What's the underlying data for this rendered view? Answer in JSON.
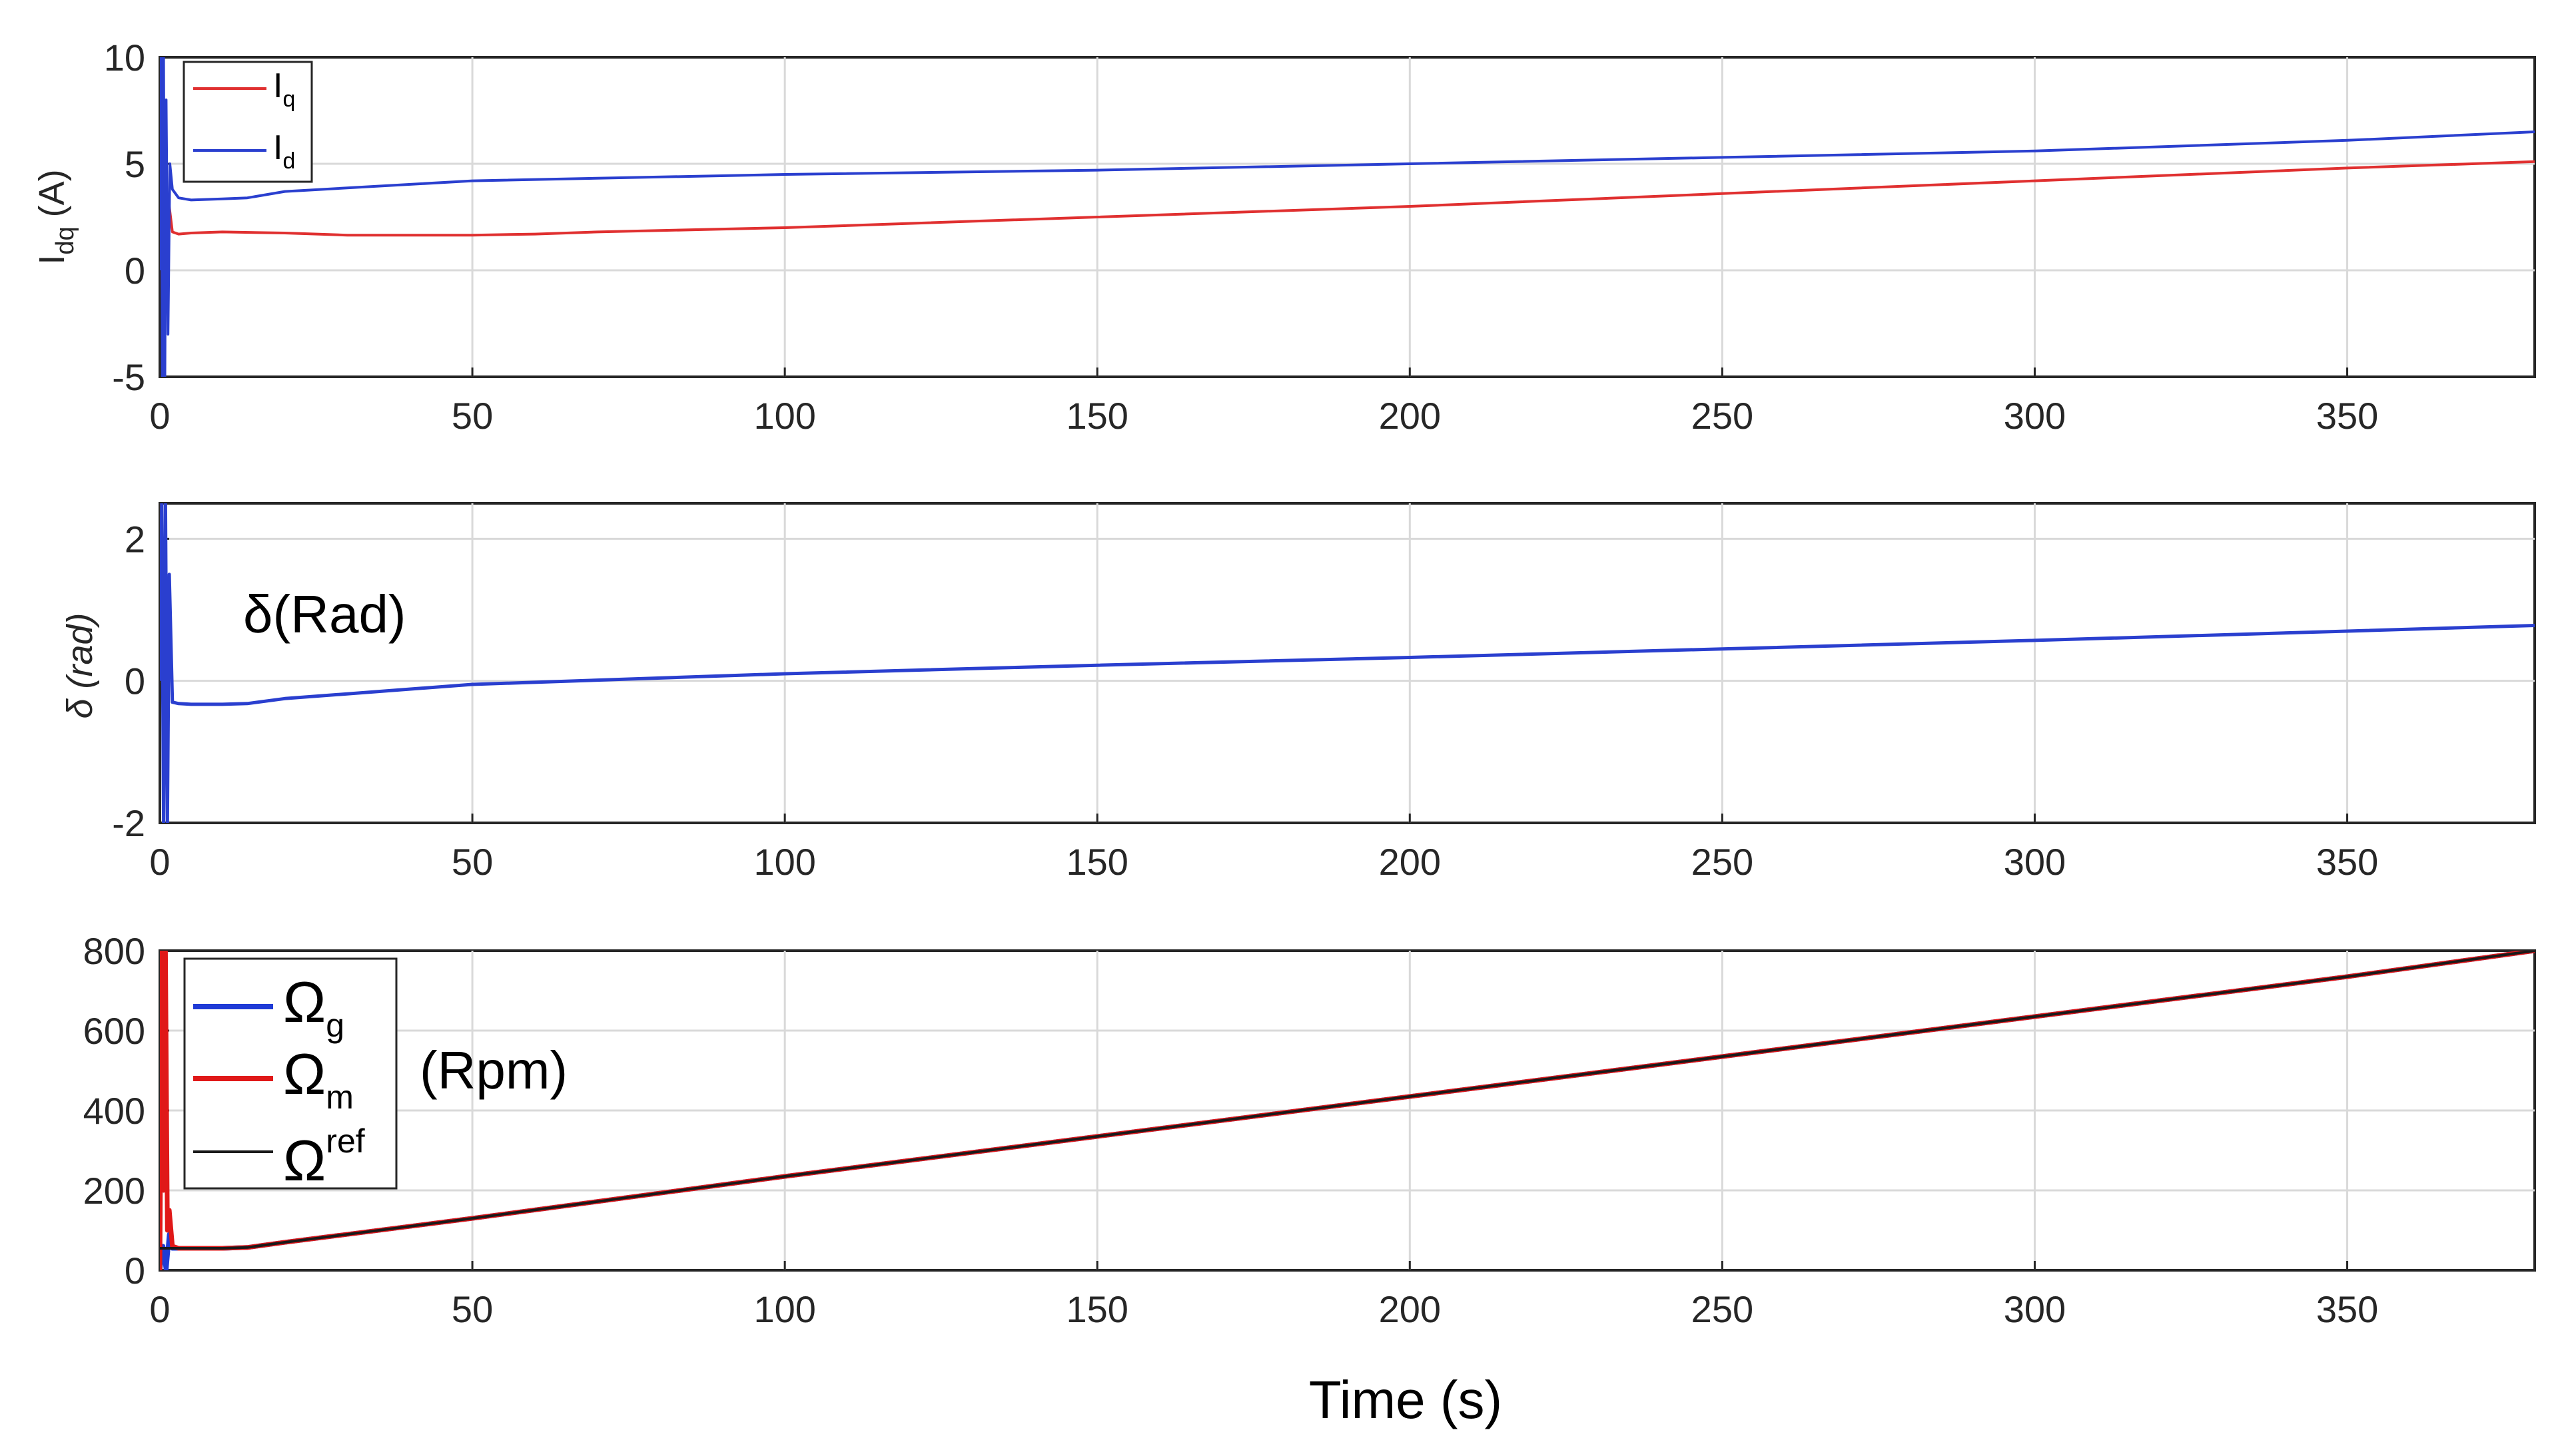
{
  "chart_data": [
    {
      "type": "line",
      "ylabel": "I",
      "ylabel_sub": "dq",
      "ylabel_unit": "(A)",
      "xlim": [
        0,
        380
      ],
      "ylim": [
        -5,
        10
      ],
      "xticks": [
        0,
        50,
        100,
        150,
        200,
        250,
        300,
        350
      ],
      "yticks": [
        -5,
        0,
        5,
        10
      ],
      "grid": true,
      "legend_position": "top-left",
      "series": [
        {
          "name": "I",
          "sub": "q",
          "color": "#e03030",
          "x": [
            0,
            0.2,
            0.4,
            0.6,
            0.8,
            1.0,
            1.2,
            1.5,
            2.0,
            3,
            5,
            10,
            20,
            30,
            50,
            60,
            70,
            100,
            150,
            200,
            250,
            300,
            350,
            380
          ],
          "y": [
            0,
            6,
            -3,
            5,
            -2,
            4,
            1,
            3,
            1.8,
            1.7,
            1.75,
            1.8,
            1.75,
            1.65,
            1.65,
            1.7,
            1.8,
            2.0,
            2.5,
            3.0,
            3.6,
            4.2,
            4.8,
            5.1
          ]
        },
        {
          "name": "I",
          "sub": "d",
          "color": "#2a3fcf",
          "x": [
            0,
            0.2,
            0.4,
            0.6,
            0.8,
            1.0,
            1.3,
            1.6,
            2.0,
            3,
            5,
            10,
            14,
            20,
            50,
            100,
            150,
            200,
            250,
            300,
            350,
            380
          ],
          "y": [
            0,
            10,
            -5,
            10,
            -5,
            8,
            -3,
            5,
            3.8,
            3.4,
            3.3,
            3.35,
            3.4,
            3.7,
            4.2,
            4.5,
            4.7,
            5.0,
            5.3,
            5.6,
            6.1,
            6.5
          ]
        }
      ]
    },
    {
      "type": "line",
      "ylabel": "δ (rad)",
      "annotation": "δ(Rad)",
      "xlim": [
        0,
        380
      ],
      "ylim": [
        -2,
        2.5
      ],
      "xticks": [
        0,
        50,
        100,
        150,
        200,
        250,
        300,
        350
      ],
      "yticks": [
        -2,
        0,
        2
      ],
      "grid": true,
      "series": [
        {
          "name": "δ",
          "color": "#2a3fcf",
          "x": [
            0,
            0.3,
            0.6,
            0.9,
            1.2,
            1.5,
            2.0,
            3,
            5,
            10,
            14,
            20,
            50,
            100,
            150,
            200,
            250,
            300,
            350,
            380
          ],
          "y": [
            0,
            2.5,
            -2,
            2.5,
            -2,
            1.5,
            -0.3,
            -0.32,
            -0.33,
            -0.33,
            -0.32,
            -0.25,
            -0.05,
            0.1,
            0.22,
            0.33,
            0.45,
            0.57,
            0.7,
            0.78
          ]
        }
      ]
    },
    {
      "type": "line",
      "annotation": "(Rpm)",
      "xlabel": "Time (s)",
      "xlim": [
        0,
        380
      ],
      "ylim": [
        0,
        800
      ],
      "xticks": [
        0,
        50,
        100,
        150,
        200,
        250,
        300,
        350
      ],
      "yticks": [
        0,
        200,
        400,
        600,
        800
      ],
      "grid": true,
      "legend_position": "top-left",
      "series": [
        {
          "name": "Ω",
          "sub": "g",
          "color": "#1f3bd6",
          "x": [
            0,
            0.5,
            1.0,
            1.5,
            2.0,
            3,
            5,
            10,
            14,
            20,
            50,
            100,
            150,
            200,
            250,
            300,
            350,
            380
          ],
          "y": [
            0,
            60,
            0,
            90,
            55,
            55,
            55,
            55,
            57,
            70,
            130,
            235,
            335,
            435,
            535,
            635,
            735,
            800
          ]
        },
        {
          "name": "Ω",
          "sub": "m",
          "color": "#e01818",
          "x": [
            0,
            0.3,
            0.6,
            0.9,
            1.2,
            1.5,
            2.0,
            3,
            5,
            10,
            14,
            20,
            50,
            100,
            150,
            200,
            250,
            300,
            350,
            380
          ],
          "y": [
            0,
            800,
            200,
            800,
            100,
            150,
            60,
            55,
            55,
            55,
            57,
            70,
            130,
            235,
            335,
            435,
            535,
            635,
            735,
            800
          ]
        },
        {
          "name": "Ω",
          "sup": "ref",
          "color": "#1a1a1a",
          "x": [
            0,
            1,
            3,
            5,
            10,
            14,
            20,
            50,
            100,
            150,
            200,
            250,
            300,
            350,
            380
          ],
          "y": [
            55,
            55,
            55,
            55,
            55,
            57,
            70,
            130,
            235,
            335,
            435,
            535,
            635,
            735,
            800
          ]
        }
      ]
    }
  ]
}
